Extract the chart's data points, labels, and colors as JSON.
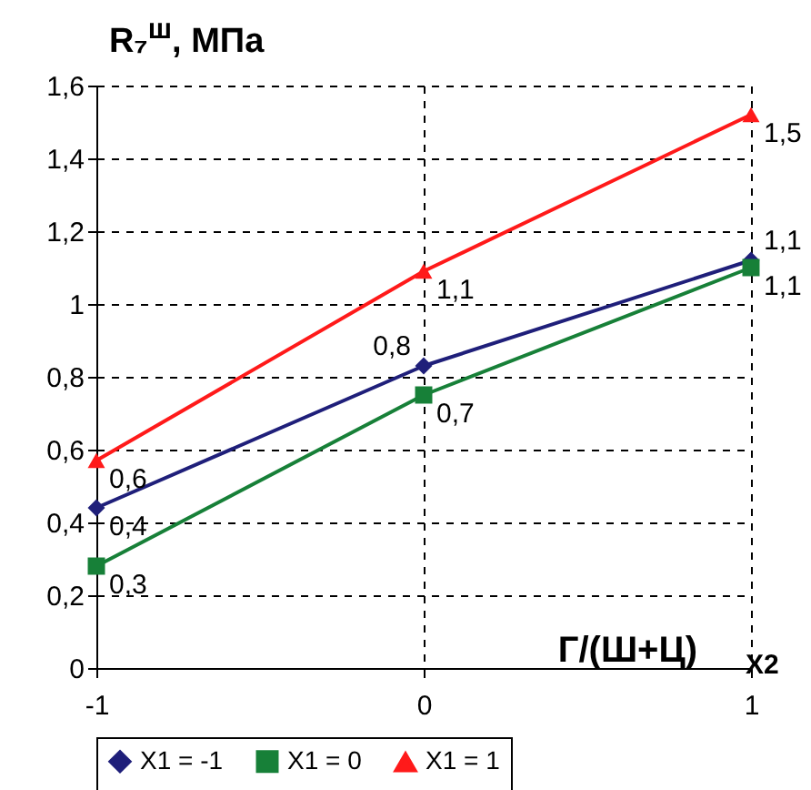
{
  "chart_data": {
    "type": "line",
    "ylabel": "R₇$^{ш}$, МПа",
    "xlabel": "Г/(Ш+Ц)",
    "annotations": [
      "X2"
    ],
    "x": [
      -1,
      0,
      1
    ],
    "xlim": [
      -1,
      1
    ],
    "xticks": [
      -1,
      0,
      1
    ],
    "ylim": [
      0,
      1.6
    ],
    "yticks": [
      0,
      {
        "value": 0.2,
        "label": "0,2"
      },
      {
        "value": 0.4,
        "label": "0,4"
      },
      {
        "value": 0.6,
        "label": "0,6"
      },
      {
        "value": 0.8,
        "label": "0,8"
      },
      1,
      {
        "value": 1.2,
        "label": "1,2"
      },
      {
        "value": 1.4,
        "label": "1,4"
      },
      {
        "value": 1.6,
        "label": "1,6"
      }
    ],
    "grid": true,
    "legend": "bottom",
    "line_style": "solid",
    "series": [
      {
        "name": "X1 = -1",
        "color": "#1f1f7a",
        "marker": "diamond",
        "values": [
          0.44,
          0.83,
          1.12
        ],
        "value_labels": [
          "0,4",
          "0,8",
          "1,1"
        ]
      },
      {
        "name": "X1 = 0",
        "color": "#178038",
        "marker": "square",
        "values": [
          0.28,
          0.75,
          1.1
        ],
        "value_labels": [
          "0,3",
          "0,7",
          "1,1"
        ]
      },
      {
        "name": "X1 = 1",
        "color": "#ff1a1a",
        "marker": "triangle",
        "values": [
          0.57,
          1.09,
          1.52
        ],
        "value_labels": [
          "0,6",
          "1,1",
          "1,5"
        ]
      }
    ]
  }
}
